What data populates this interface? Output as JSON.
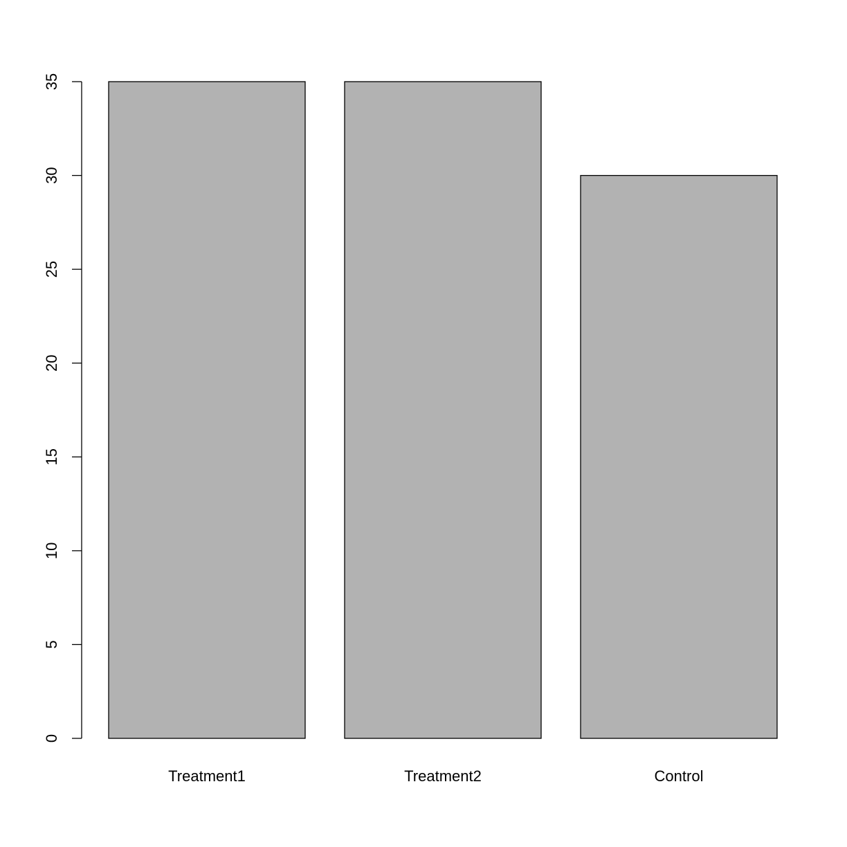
{
  "chart_data": {
    "type": "bar",
    "categories": [
      "Treatment1",
      "Treatment2",
      "Control"
    ],
    "values": [
      35,
      35,
      30
    ],
    "title": "",
    "xlabel": "",
    "ylabel": "",
    "ylim": [
      0,
      35
    ],
    "yticks": [
      0,
      5,
      10,
      15,
      20,
      25,
      30,
      35
    ],
    "grid": false,
    "legend": "none",
    "bar_color": "#b2b2b2",
    "edge_color": "#000000"
  }
}
